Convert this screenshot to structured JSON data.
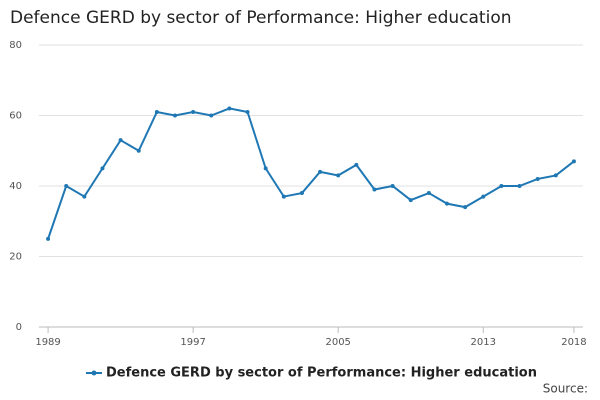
{
  "chart_data": {
    "type": "line",
    "title": "Defence GERD by sector of Performance: Higher education",
    "x": [
      1989,
      1990,
      1991,
      1992,
      1993,
      1994,
      1995,
      1996,
      1997,
      1998,
      1999,
      2000,
      2001,
      2002,
      2003,
      2004,
      2005,
      2006,
      2007,
      2008,
      2009,
      2010,
      2011,
      2012,
      2013,
      2014,
      2015,
      2016,
      2017,
      2018
    ],
    "series": [
      {
        "name": "Defence GERD by sector of Performance: Higher education",
        "color": "#1f78b4",
        "values": [
          25,
          40,
          37,
          45,
          53,
          50,
          61,
          60,
          61,
          60,
          62,
          61,
          45,
          37,
          38,
          44,
          43,
          46,
          39,
          40,
          36,
          38,
          35,
          34,
          37,
          40,
          40,
          42,
          43,
          47
        ]
      }
    ],
    "xlim": [
      1988.5,
      2018.5
    ],
    "xticks": [
      1989,
      1997,
      2005,
      2013,
      2018
    ],
    "ylim": [
      0,
      80
    ],
    "yticks": [
      0,
      20,
      40,
      60,
      80
    ],
    "grid": true,
    "source": "Source:"
  }
}
